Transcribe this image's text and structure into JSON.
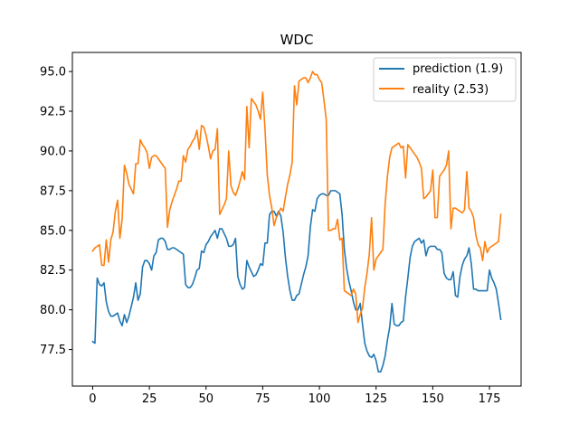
{
  "chart_data": {
    "type": "line",
    "title": "WDC",
    "xlabel": "",
    "ylabel": "",
    "xlim": [
      -8.95,
      188.95
    ],
    "ylim": [
      75.2,
      96.2
    ],
    "xticks": [
      0,
      25,
      50,
      75,
      100,
      125,
      150,
      175
    ],
    "yticks": [
      77.5,
      80.0,
      82.5,
      85.0,
      87.5,
      90.0,
      92.5,
      95.0
    ],
    "ytick_labels": [
      "77.5",
      "80.0",
      "82.5",
      "85.0",
      "87.5",
      "90.0",
      "92.5",
      "95.0"
    ],
    "grid": false,
    "legend": "top-right",
    "series": [
      {
        "name": "prediction (1.9)",
        "color": "#1f77b4",
        "values": [
          78.0,
          77.9,
          82.0,
          81.6,
          81.5,
          81.7,
          80.5,
          79.9,
          79.6,
          79.6,
          79.7,
          79.8,
          79.3,
          79.0,
          79.7,
          79.2,
          79.6,
          80.2,
          80.8,
          81.7,
          80.6,
          81.0,
          82.7,
          83.1,
          83.1,
          82.9,
          82.5,
          83.4,
          83.6,
          84.4,
          84.5,
          84.5,
          84.3,
          83.8,
          83.8,
          83.9,
          83.9,
          83.8,
          83.7,
          83.6,
          83.5,
          81.6,
          81.4,
          81.4,
          81.6,
          82.0,
          82.5,
          82.6,
          83.7,
          83.6,
          84.1,
          84.3,
          84.6,
          84.8,
          85.0,
          84.5,
          85.1,
          85.1,
          84.8,
          84.5,
          84.0,
          84.0,
          84.1,
          84.5,
          82.1,
          81.6,
          81.3,
          81.4,
          83.1,
          82.7,
          82.4,
          82.1,
          82.2,
          82.5,
          82.9,
          82.8,
          84.2,
          84.2,
          86.0,
          86.2,
          86.2,
          85.9,
          86.2,
          85.9,
          84.9,
          83.3,
          82.1,
          81.2,
          80.6,
          80.6,
          80.9,
          81.0,
          81.6,
          82.2,
          82.7,
          83.4,
          85.2,
          86.3,
          86.2,
          87.0,
          87.2,
          87.3,
          87.3,
          87.2,
          87.2,
          87.5,
          87.5,
          87.5,
          87.4,
          87.3,
          86.0,
          83.8,
          82.6,
          81.8,
          81.2,
          80.5,
          80.0,
          80.0,
          80.4,
          79.1,
          77.9,
          77.4,
          77.1,
          77.0,
          77.2,
          76.8,
          76.1,
          76.1,
          76.5,
          77.1,
          78.1,
          78.9,
          80.4,
          79.1,
          79.0,
          79.0,
          79.2,
          79.3,
          80.8,
          82.0,
          83.3,
          84.0,
          84.3,
          84.4,
          84.5,
          84.2,
          84.4,
          83.4,
          83.9,
          84.0,
          84.0,
          84.0,
          83.8,
          83.8,
          83.6,
          82.3,
          82.0,
          81.9,
          81.9,
          82.4,
          80.9,
          80.8,
          82.1,
          82.8,
          83.2,
          83.4,
          83.9,
          82.9,
          81.3,
          81.3,
          81.2,
          81.2,
          81.2,
          81.2,
          81.2,
          82.5,
          82.0,
          81.7,
          81.3,
          80.4,
          79.4
        ]
      },
      {
        "name": "reality (2.53)",
        "color": "#ff7f0e",
        "values": [
          83.7,
          83.9,
          84.0,
          84.1,
          82.8,
          82.8,
          84.4,
          83.0,
          84.4,
          84.9,
          86.2,
          86.9,
          84.5,
          85.7,
          89.1,
          88.6,
          87.9,
          87.6,
          87.3,
          89.2,
          89.2,
          90.7,
          90.4,
          90.2,
          89.9,
          88.9,
          89.6,
          89.7,
          89.7,
          89.5,
          89.3,
          89.1,
          88.9,
          85.2,
          86.3,
          86.8,
          87.2,
          87.6,
          88.1,
          88.1,
          89.7,
          89.3,
          90.1,
          90.3,
          90.6,
          90.8,
          91.3,
          90.1,
          91.6,
          91.5,
          91.0,
          90.3,
          89.5,
          90.0,
          90.1,
          91.4,
          86.0,
          86.3,
          86.6,
          87.0,
          90.0,
          87.8,
          87.4,
          87.2,
          87.6,
          88.1,
          88.7,
          88.2,
          92.8,
          90.2,
          93.3,
          93.1,
          92.9,
          92.5,
          92.0,
          93.7,
          91.4,
          88.5,
          87.2,
          86.4,
          85.3,
          85.8,
          86.1,
          86.4,
          86.2,
          87.1,
          87.9,
          88.5,
          89.3,
          94.1,
          92.9,
          94.4,
          94.5,
          94.6,
          94.6,
          94.3,
          94.6,
          95.0,
          94.8,
          94.8,
          94.5,
          94.3,
          93.2,
          92.0,
          85.0,
          85.0,
          85.1,
          85.1,
          85.7,
          84.4,
          84.5,
          81.2,
          81.1,
          81.0,
          80.9,
          81.3,
          81.0,
          79.2,
          79.7,
          80.1,
          81.4,
          82.3,
          83.5,
          85.8,
          82.5,
          83.2,
          83.4,
          83.6,
          83.8,
          86.7,
          88.4,
          89.6,
          90.2,
          90.3,
          90.4,
          90.5,
          90.2,
          90.3,
          88.3,
          90.4,
          90.2,
          90.0,
          89.8,
          89.6,
          89.3,
          88.9,
          87.0,
          87.1,
          87.3,
          87.5,
          88.8,
          85.8,
          85.8,
          88.4,
          88.6,
          88.8,
          89.1,
          90.0,
          85.1,
          86.4,
          86.4,
          86.3,
          86.2,
          86.1,
          86.3,
          88.7,
          86.4,
          86.2,
          85.8,
          84.7,
          84.1,
          83.9,
          83.1,
          84.3,
          83.6,
          83.9,
          84.0,
          84.1,
          84.2,
          84.3,
          86.0
        ]
      }
    ]
  }
}
